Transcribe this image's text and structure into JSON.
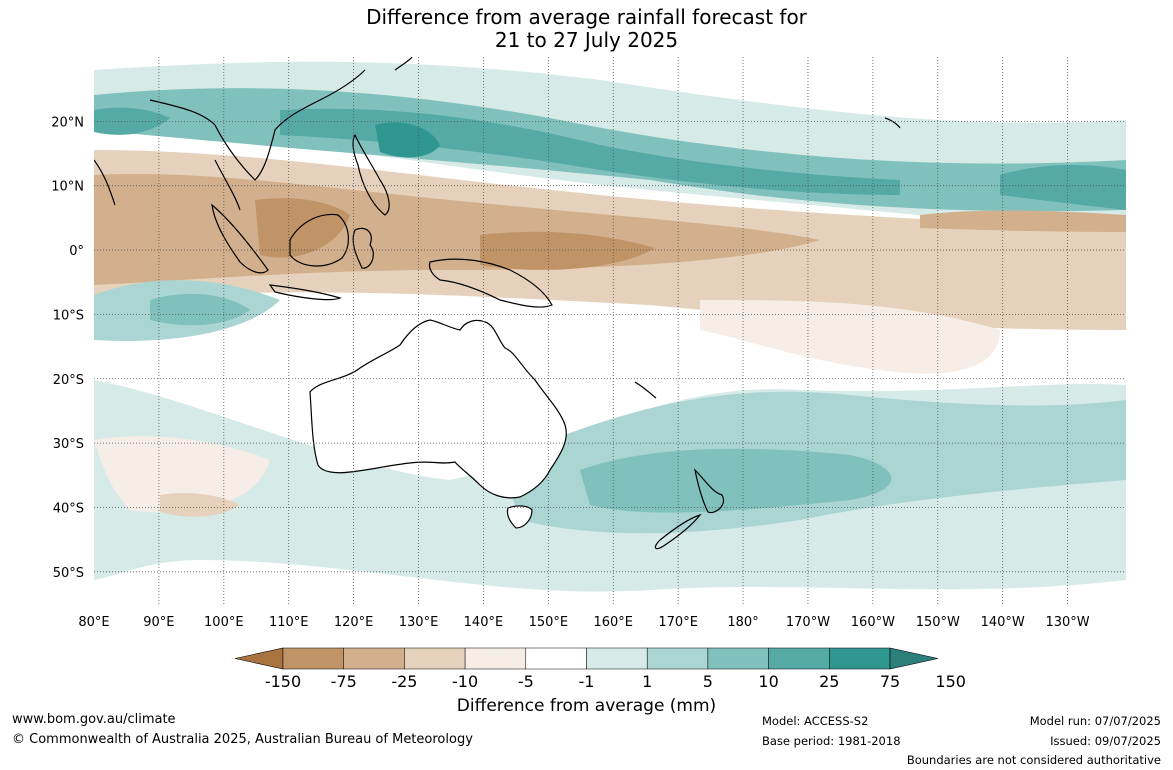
{
  "title": {
    "line1": "Difference from average rainfall forecast for",
    "line2": "21 to 27 July 2025"
  },
  "map": {
    "longitude_labels": [
      "80°E",
      "90°E",
      "100°E",
      "110°E",
      "120°E",
      "130°E",
      "140°E",
      "150°E",
      "160°E",
      "170°E",
      "180°",
      "170°W",
      "160°W",
      "150°W",
      "140°W",
      "130°W"
    ],
    "latitude_labels": [
      "20°N",
      "10°N",
      "0°",
      "10°S",
      "20°S",
      "30°S",
      "40°S",
      "50°S"
    ],
    "extent": {
      "lon": [
        80,
        239
      ],
      "lat": [
        -55,
        30
      ]
    },
    "land_color": "#ffffff",
    "coastline_color": "#000000",
    "grid": "dotted"
  },
  "legend": {
    "tick_labels": [
      "-150",
      "-75",
      "-25",
      "-10",
      "-5",
      "-1",
      "1",
      "5",
      "10",
      "25",
      "75",
      "150"
    ],
    "colors": [
      "#a8733e",
      "#c19468",
      "#d3b08d",
      "#e6d2bc",
      "#f5ede6",
      "#ffffff",
      "#d6eae8",
      "#aad5d2",
      "#80c0bd",
      "#55aaa6",
      "#2f9690",
      "#2c7f7b"
    ],
    "title": "Difference from average (mm)"
  },
  "footer": {
    "website": "www.bom.gov.au/climate",
    "copyright": "© Commonwealth of Australia 2025, Australian Bureau of Meteorology",
    "model": "Model: ACCESS-S2",
    "base_period": "Base period: 1981-2018",
    "model_run": "Model run: 07/07/2025",
    "issued": "Issued: 09/07/2025",
    "disclaimer": "Boundaries are not considered authoritative"
  }
}
